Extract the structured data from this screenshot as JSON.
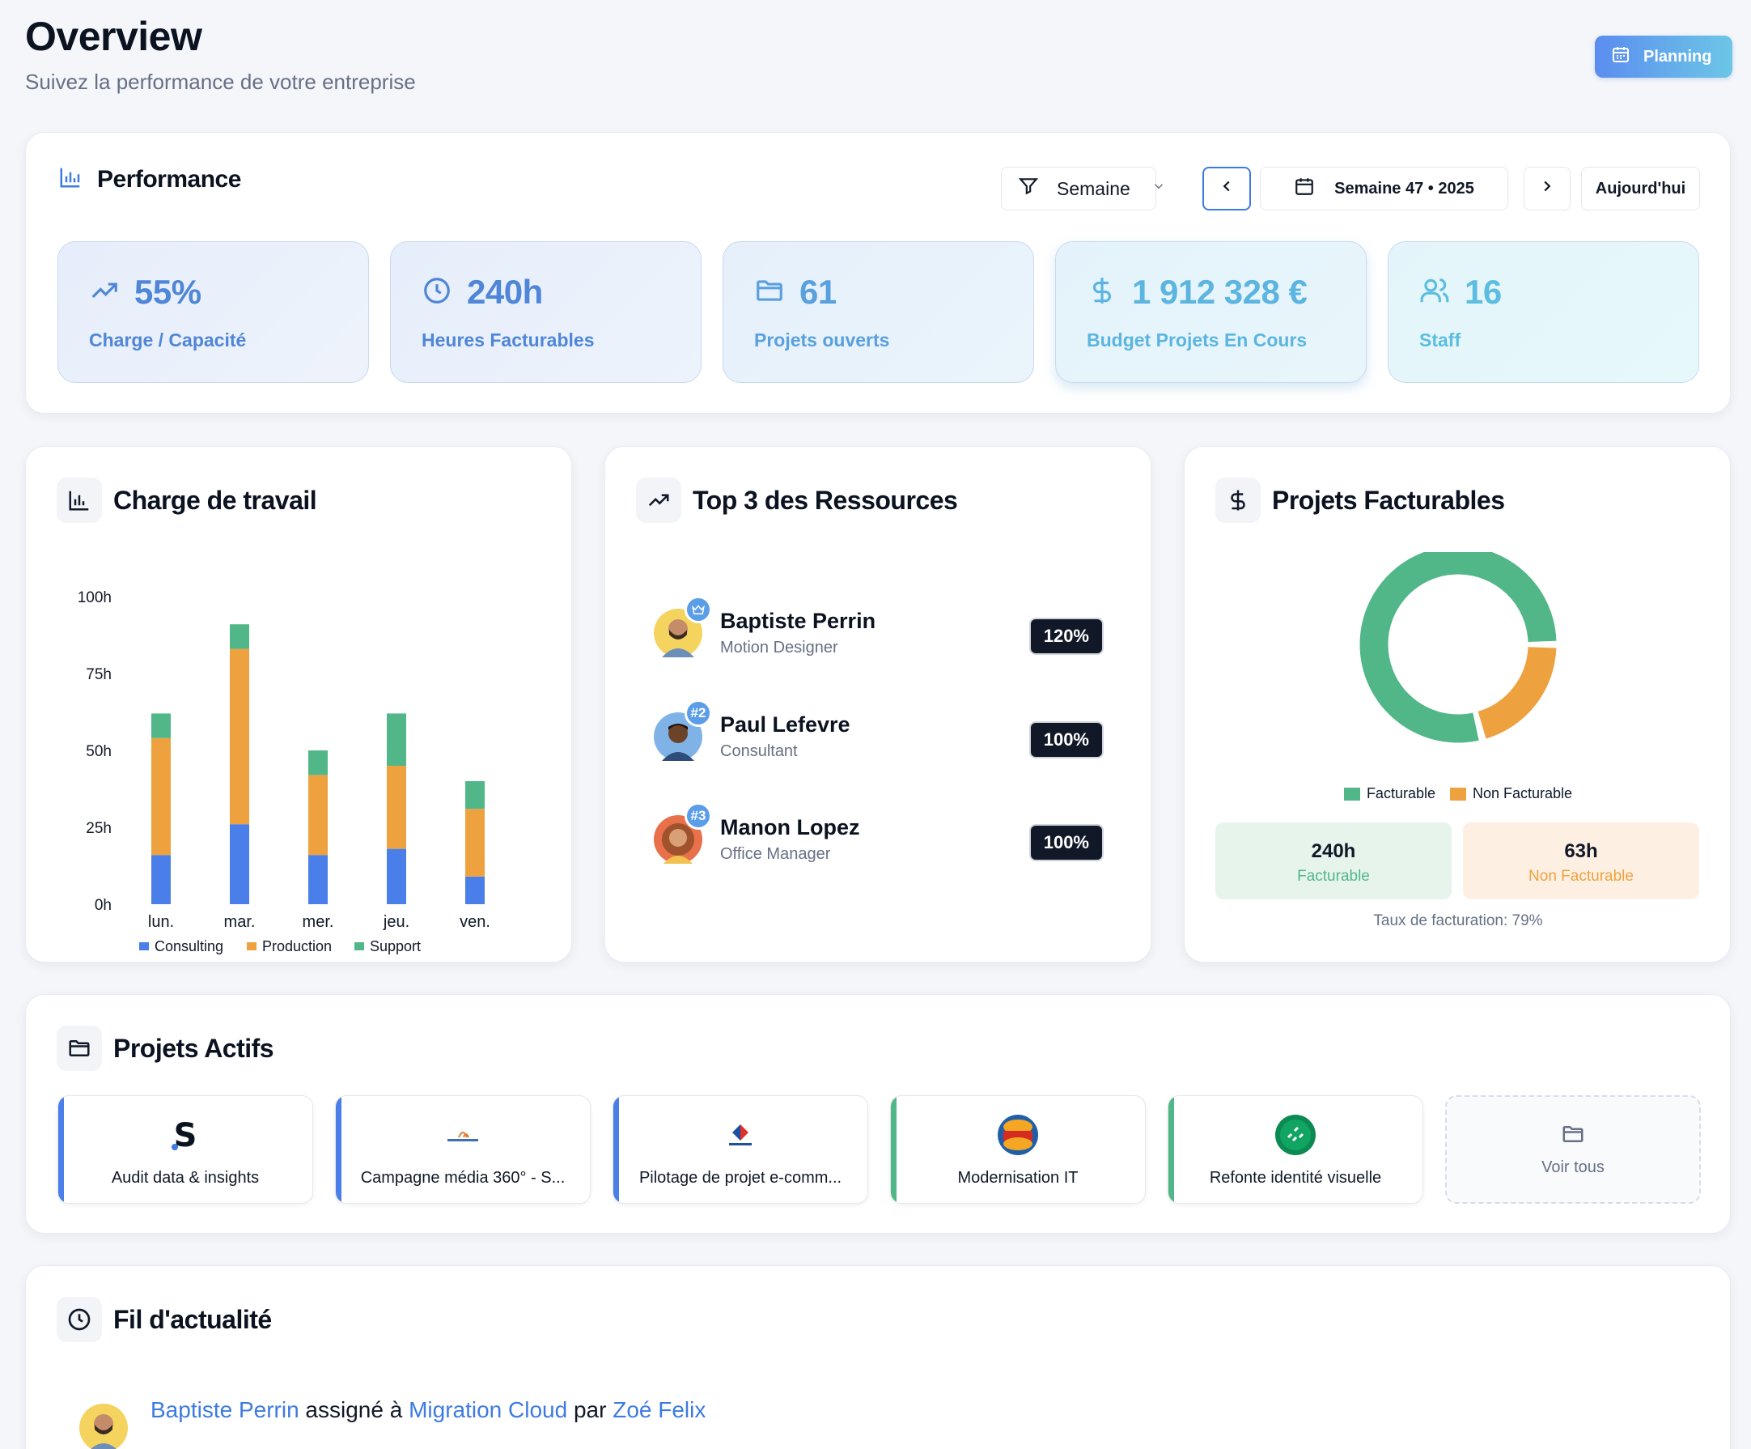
{
  "header": {
    "title": "Overview",
    "subtitle": "Suivez la performance de votre entreprise",
    "planning_label": "Planning"
  },
  "performance": {
    "title": "Performance",
    "filter_label": "Semaine",
    "period_label": "Semaine 47 • 2025",
    "today_label": "Aujourd'hui",
    "stats": [
      {
        "value": "55%",
        "label": "Charge / Capacité",
        "icon": "trending-up-icon"
      },
      {
        "value": "240h",
        "label": "Heures Facturables",
        "icon": "clock-icon"
      },
      {
        "value": "61",
        "label": "Projets ouverts",
        "icon": "folder-icon"
      },
      {
        "value": "1 912 328 €",
        "label": "Budget Projets En Cours",
        "icon": "dollar-icon"
      },
      {
        "value": "16",
        "label": "Staff",
        "icon": "users-icon"
      }
    ]
  },
  "workload": {
    "title": "Charge de travail"
  },
  "chart_data": {
    "type": "bar",
    "stacked": true,
    "categories": [
      "lun.",
      "mar.",
      "mer.",
      "jeu.",
      "ven."
    ],
    "y_ticks": [
      "0h",
      "25h",
      "50h",
      "75h",
      "100h"
    ],
    "ylim": [
      0,
      100
    ],
    "series": [
      {
        "name": "Consulting",
        "color": "#4a7ee8",
        "values": [
          16,
          26,
          16,
          18,
          9
        ]
      },
      {
        "name": "Production",
        "color": "#eea23f",
        "values": [
          38,
          57,
          26,
          27,
          22
        ]
      },
      {
        "name": "Support",
        "color": "#52b788",
        "values": [
          8,
          8,
          8,
          17,
          9
        ]
      }
    ],
    "legend": "bottom"
  },
  "top_resources": {
    "title": "Top 3 des Ressources",
    "items": [
      {
        "name": "Baptiste Perrin",
        "role": "Motion Designer",
        "pct": "120%",
        "rank": "crown-icon"
      },
      {
        "name": "Paul Lefevre",
        "role": "Consultant",
        "pct": "100%",
        "rank": "#2"
      },
      {
        "name": "Manon Lopez",
        "role": "Office Manager",
        "pct": "100%",
        "rank": "#3"
      }
    ]
  },
  "billable": {
    "title": "Projets Facturables",
    "legend_billable": "Facturable",
    "legend_non_billable": "Non Facturable",
    "billable_hours": "240h",
    "billable_label": "Facturable",
    "non_billable_hours": "63h",
    "non_billable_label": "Non Facturable",
    "rate_text": "Taux de facturation: 79%",
    "billable_fraction": 0.79,
    "colors": {
      "billable": "#52b788",
      "non_billable": "#eea23f"
    }
  },
  "projects": {
    "title": "Projets Actifs",
    "items": [
      {
        "name": "Audit data & insights",
        "color": "#4a7ee8",
        "logo": "s-logo"
      },
      {
        "name": "Campagne média 360° - S...",
        "color": "#4a7ee8",
        "logo": "saint-gobain-logo"
      },
      {
        "name": "Pilotage de projet e-comm...",
        "color": "#4a7ee8",
        "logo": "carrefour-logo"
      },
      {
        "name": "Modernisation IT",
        "color": "#52b788",
        "logo": "burger-king-logo"
      },
      {
        "name": "Refonte identité visuelle",
        "color": "#52b788",
        "logo": "bnp-logo"
      }
    ],
    "see_all": "Voir tous"
  },
  "feed": {
    "title": "Fil d'actualité",
    "item": {
      "actor": "Baptiste Perrin",
      "action": "assigné à",
      "target": "Migration Cloud",
      "by": "par",
      "author": "Zoé Felix"
    }
  }
}
